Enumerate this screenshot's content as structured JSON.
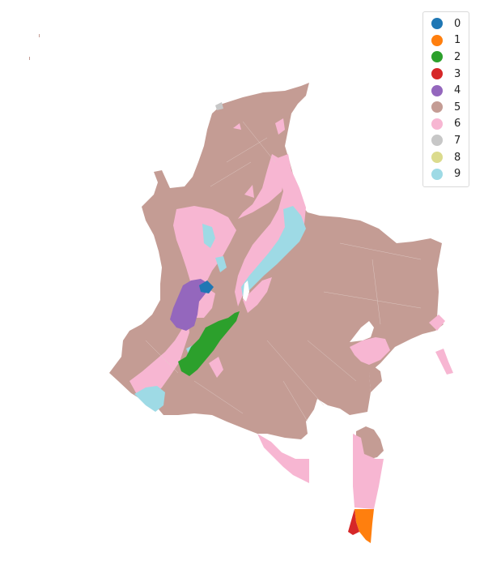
{
  "legend": {
    "items": [
      {
        "label": "0",
        "color": "#1f77b4"
      },
      {
        "label": "1",
        "color": "#ff7f0e"
      },
      {
        "label": "2",
        "color": "#2ca02c"
      },
      {
        "label": "3",
        "color": "#d62728"
      },
      {
        "label": "4",
        "color": "#9467bd"
      },
      {
        "label": "5",
        "color": "#c49c94"
      },
      {
        "label": "6",
        "color": "#f7b6d2"
      },
      {
        "label": "7",
        "color": "#c7c7c7"
      },
      {
        "label": "8",
        "color": "#dbdb8d"
      },
      {
        "label": "9",
        "color": "#9edae5"
      }
    ]
  },
  "map": {
    "base_color": "#c49c94",
    "border_color": "#d8bfb8"
  }
}
